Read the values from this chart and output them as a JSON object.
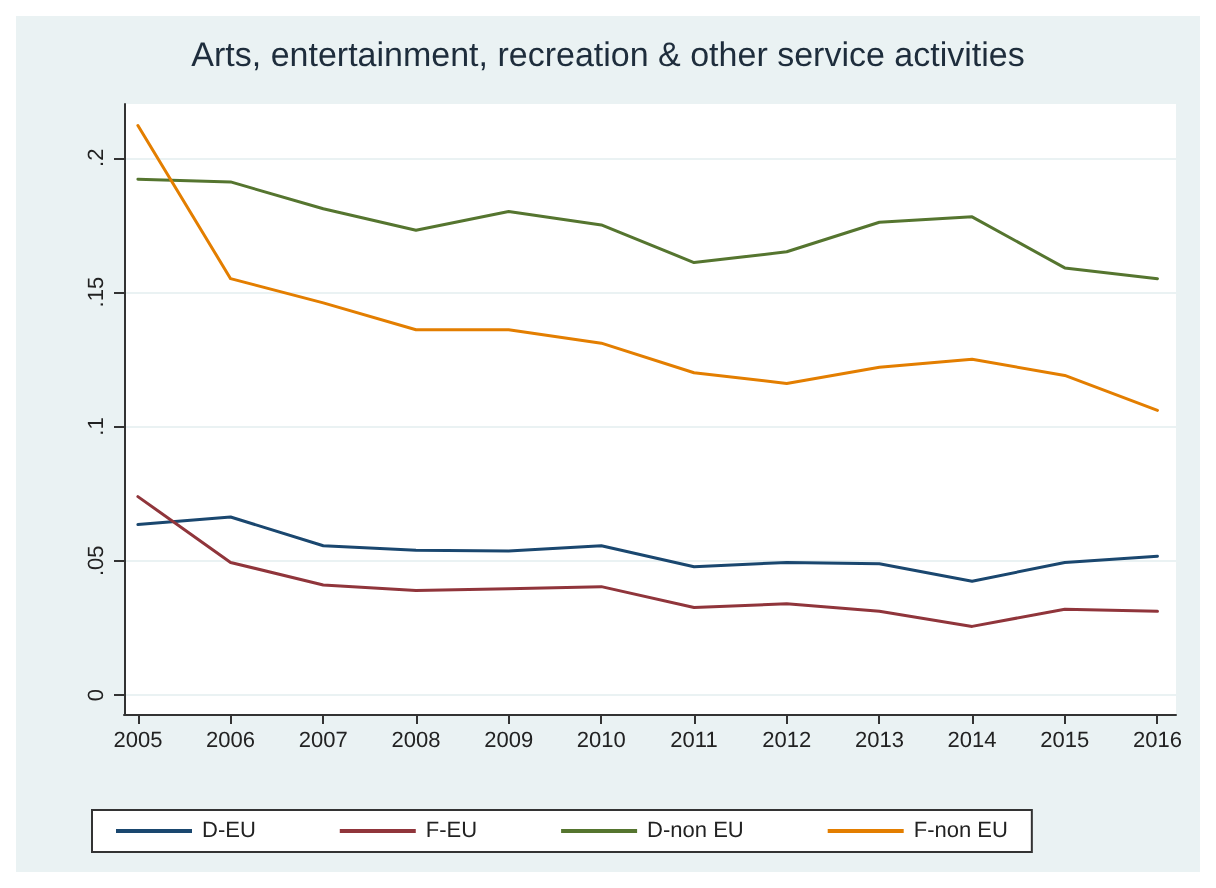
{
  "chart_data": {
    "type": "line",
    "title": "Arts, entertainment, recreation & other service activities",
    "x": [
      2005,
      2006,
      2007,
      2008,
      2009,
      2010,
      2011,
      2012,
      2013,
      2014,
      2015,
      2016
    ],
    "series": [
      {
        "name": "D-EU",
        "color": "#1a476f",
        "values": [
          0.0635,
          0.0663,
          0.0556,
          0.0539,
          0.0537,
          0.0556,
          0.0478,
          0.0494,
          0.0489,
          0.0424,
          0.0494,
          0.0517
        ]
      },
      {
        "name": "F-EU",
        "color": "#90353b",
        "values": [
          0.0739,
          0.0494,
          0.041,
          0.039,
          0.0396,
          0.0404,
          0.0326,
          0.034,
          0.0312,
          0.0256,
          0.032,
          0.0312
        ]
      },
      {
        "name": "D-non EU",
        "color": "#55752f",
        "values": [
          0.192,
          0.191,
          0.181,
          0.173,
          0.18,
          0.175,
          0.161,
          0.165,
          0.176,
          0.178,
          0.159,
          0.155
        ]
      },
      {
        "name": "F-non EU",
        "color": "#e37e00",
        "values": [
          0.212,
          0.155,
          0.146,
          0.136,
          0.136,
          0.131,
          0.12,
          0.116,
          0.122,
          0.125,
          0.119,
          0.106
        ]
      }
    ],
    "xlim": [
      2004.85,
      2016.2
    ],
    "xticks": [
      2005,
      2006,
      2007,
      2008,
      2009,
      2010,
      2011,
      2012,
      2013,
      2014,
      2015,
      2016
    ],
    "ylim": [
      -0.007,
      0.22
    ],
    "yticks": [
      {
        "value": 0,
        "label": "0"
      },
      {
        "value": 0.05,
        "label": ".05"
      },
      {
        "value": 0.1,
        "label": ".1"
      },
      {
        "value": 0.15,
        "label": ".15"
      },
      {
        "value": 0.2,
        "label": ".2"
      }
    ],
    "grid": "y",
    "legend": "bottom",
    "marker": "none",
    "line_style": "solid"
  }
}
